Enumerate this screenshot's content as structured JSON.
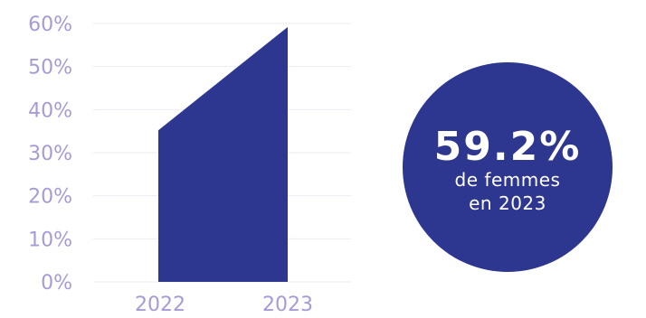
{
  "colors": {
    "area": "#2e3790",
    "tick_text": "#a89ad6",
    "grid": "#ececf2",
    "badge_bg": "#2e3790",
    "badge_text": "#ffffff"
  },
  "chart_data": {
    "type": "area",
    "categories": [
      "2022",
      "2023"
    ],
    "values": [
      35.2,
      59.2
    ],
    "yticks": [
      "0%",
      "10%",
      "20%",
      "30%",
      "40%",
      "50%",
      "60%"
    ],
    "ylim": [
      0,
      60
    ],
    "grid": true,
    "title": "",
    "xlabel": "",
    "ylabel": ""
  },
  "highlight": {
    "value": "59.2%",
    "line1": "de femmes",
    "line2": "en 2023"
  }
}
